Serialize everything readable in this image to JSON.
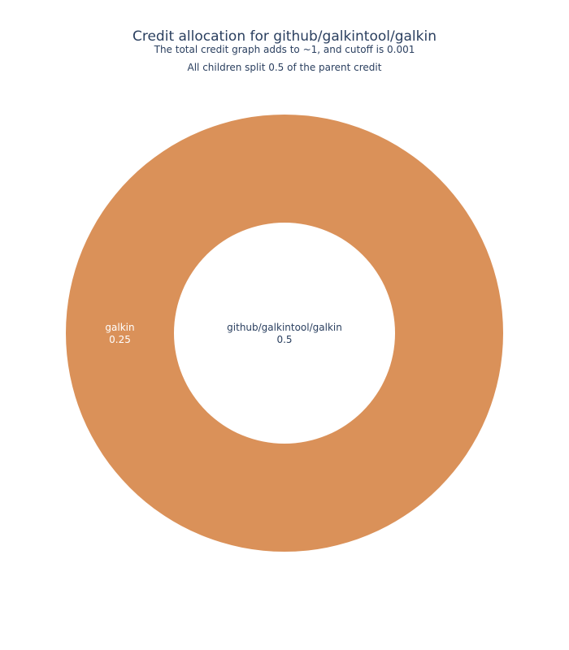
{
  "chart_data": {
    "type": "sunburst",
    "title": "Credit allocation for github/galkintool/galkin",
    "subtitle_lines": [
      "The total credit graph adds to ~1, and cutoff is 0.001",
      "All children split 0.5 of the parent credit"
    ],
    "root": {
      "name": "github/galkintool/galkin",
      "value": 0.5,
      "color": "#ffffff",
      "label_color": "#2a3f5f"
    },
    "children": [
      {
        "name": "galkin",
        "value": 0.25,
        "color": "#da9159",
        "label_color": "#ffffff"
      }
    ]
  }
}
